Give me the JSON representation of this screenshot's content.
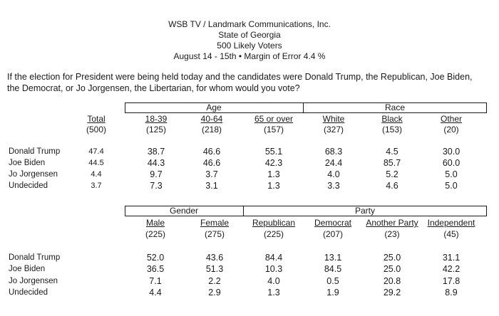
{
  "header": {
    "line1": "WSB TV / Landmark Communications, Inc.",
    "line2": "State of Georgia",
    "line3": "500 Likely Voters",
    "line4": "August 14 - 15th • Margin of Error 4.4 %"
  },
  "question": {
    "line1": "If the election for President were being held today and the candidates were Donald Trump, the Republican, Joe Biden,",
    "line2": "the Democrat, or Jo Jorgensen, the Libertarian, for whom would you vote?"
  },
  "table1": {
    "total": {
      "label": "Total",
      "n": "(500)"
    },
    "groups": {
      "age": "Age",
      "race": "Race"
    },
    "columns": [
      {
        "label": "18-39",
        "n": "(125)"
      },
      {
        "label": "40-64",
        "n": "(218)"
      },
      {
        "label": "65 or over",
        "n": "(157)"
      },
      {
        "label": "White",
        "n": "(327)"
      },
      {
        "label": "Black",
        "n": "(153)"
      },
      {
        "label": "Other",
        "n": "(20)"
      }
    ],
    "rows": [
      {
        "label": "Donald Trump",
        "total": "47.4",
        "values": [
          "38.7",
          "46.6",
          "55.1",
          "68.3",
          "4.5",
          "30.0"
        ]
      },
      {
        "label": "Joe Biden",
        "total": "44.5",
        "values": [
          "44.3",
          "46.6",
          "42.3",
          "24.4",
          "85.7",
          "60.0"
        ]
      },
      {
        "label": "Jo Jorgensen",
        "total": "4.4",
        "values": [
          "9.7",
          "3.7",
          "1.3",
          "4.0",
          "5.2",
          "5.0"
        ]
      },
      {
        "label": "Undecided",
        "total": "3.7",
        "values": [
          "7.3",
          "3.1",
          "1.3",
          "3.3",
          "4.6",
          "5.0"
        ]
      }
    ]
  },
  "table2": {
    "groups": {
      "gender": "Gender",
      "party": "Party"
    },
    "columns": [
      {
        "label": "Male",
        "n": "(225)"
      },
      {
        "label": "Female",
        "n": "(275)"
      },
      {
        "label": "Republican",
        "n": "(225)"
      },
      {
        "label": "Democrat",
        "n": "(207)"
      },
      {
        "label": "Another Party",
        "n": "(23)"
      },
      {
        "label": "Independent",
        "n": "(45)"
      }
    ],
    "rows": [
      {
        "label": "Donald Trump",
        "values": [
          "52.0",
          "43.6",
          "84.4",
          "13.1",
          "25.0",
          "31.1"
        ]
      },
      {
        "label": "Joe Biden",
        "values": [
          "36.5",
          "51.3",
          "10.3",
          "84.5",
          "25.0",
          "42.2"
        ]
      },
      {
        "label": "Jo Jorgensen",
        "values": [
          "7.1",
          "2.2",
          "4.0",
          "0.5",
          "20.8",
          "17.8"
        ]
      },
      {
        "label": "Undecided",
        "values": [
          "4.4",
          "2.9",
          "1.3",
          "1.9",
          "29.2",
          "8.9"
        ]
      }
    ]
  }
}
